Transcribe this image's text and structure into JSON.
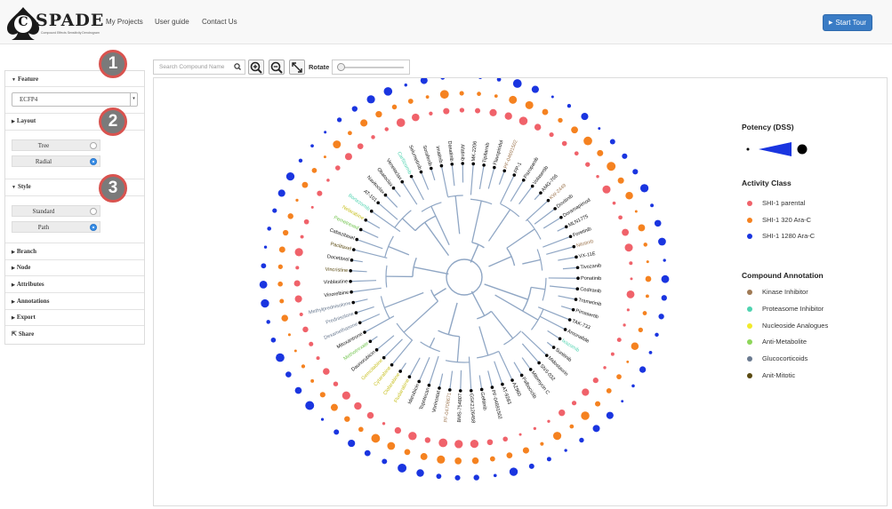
{
  "header": {
    "logo_letter": "C",
    "logo_word": "SPADE",
    "logo_tagline": "Compound Effects Sensitivity Dendrogram",
    "nav": [
      "My Projects",
      "User guide",
      "Contact Us"
    ],
    "start_tour": "Start Tour"
  },
  "sidebar": {
    "feature": {
      "title": "Feature",
      "selected": "ECFP4"
    },
    "layout": {
      "title": "Layout",
      "options": [
        {
          "label": "Tree",
          "checked": false
        },
        {
          "label": "Radial",
          "checked": true
        }
      ]
    },
    "style": {
      "title": "Style",
      "options": [
        {
          "label": "Standard",
          "checked": false
        },
        {
          "label": "Path",
          "checked": true
        }
      ]
    },
    "branch": "Branch",
    "node": "Node",
    "attributes": "Attributes",
    "annotations": "Annotations",
    "export": "Export",
    "share": "Share"
  },
  "badges": [
    "1",
    "2",
    "3"
  ],
  "toolbar": {
    "search_placeholder": "Search Compound Name",
    "rotate_label": "Rotate",
    "rotate_value": 0
  },
  "legend": {
    "potency_title": "Potency (DSS)",
    "activity_title": "Activity Class",
    "activity": [
      {
        "label": "SHI-1 parental",
        "color": "#f0626a"
      },
      {
        "label": "SHI-1 320 Ara-C",
        "color": "#f58220"
      },
      {
        "label": "SHI-1 1280 Ara-C",
        "color": "#1a35e0"
      }
    ],
    "annotation_title": "Compound Annotation",
    "annotations": [
      {
        "label": "Kinase Inhibitor",
        "color": "#a07a55"
      },
      {
        "label": "Proteasome Inhibitor",
        "color": "#4fd3b0"
      },
      {
        "label": "Nucleoside Analogues",
        "color": "#f2ea2a"
      },
      {
        "label": "Anti-Metabolite",
        "color": "#8ed65a"
      },
      {
        "label": "Glucocorticoids",
        "color": "#6a7a90"
      },
      {
        "label": "Anit-Mitotic",
        "color": "#5a4a12"
      }
    ]
  },
  "compounds": [
    {
      "name": "MK-2206",
      "ann": null
    },
    {
      "name": "Tipifarnib",
      "ann": null
    },
    {
      "name": "Flavopiridol",
      "ann": null
    },
    {
      "name": "PF-04691502",
      "ann": "kinase"
    },
    {
      "name": "PP-1",
      "ann": null
    },
    {
      "name": "Pazopanib",
      "ann": null
    },
    {
      "name": "Volasertib",
      "ann": null
    },
    {
      "name": "AMG-706",
      "ann": null
    },
    {
      "name": "KW-2449",
      "ann": "kinase"
    },
    {
      "name": "Dovitinib",
      "ann": null
    },
    {
      "name": "Doramapimod",
      "ann": null
    },
    {
      "name": "MLN1775",
      "ann": null
    },
    {
      "name": "Foretinib",
      "ann": null
    },
    {
      "name": "Nilotinib",
      "ann": "kinase"
    },
    {
      "name": "VX-11E",
      "ann": null
    },
    {
      "name": "Tivozanib",
      "ann": null
    },
    {
      "name": "Ponatinib",
      "ann": null
    },
    {
      "name": "Cediranib",
      "ann": null
    },
    {
      "name": "Trametinib",
      "ann": null
    },
    {
      "name": "Pimasertib",
      "ann": null
    },
    {
      "name": "TAK-733",
      "ann": null
    },
    {
      "name": "Amonafide",
      "ann": null
    },
    {
      "name": "Ixazomib",
      "ann": "proteasome"
    },
    {
      "name": "Sunitinib",
      "ann": null
    },
    {
      "name": "Midostaurin",
      "ann": null
    },
    {
      "name": "SNS-032",
      "ann": null
    },
    {
      "name": "Mitomycin C",
      "ann": null
    },
    {
      "name": "Palbociclib",
      "ann": null
    },
    {
      "name": "AZ960",
      "ann": null
    },
    {
      "name": "AT-9283",
      "ann": null
    },
    {
      "name": "PF-04691502",
      "ann": null
    },
    {
      "name": "Gefitinib",
      "ann": null
    },
    {
      "name": "GSK2126458",
      "ann": null
    },
    {
      "name": "BMS-754807",
      "ann": null
    },
    {
      "name": "PF-04708671",
      "ann": "kinase"
    },
    {
      "name": "Vorinostat",
      "ann": null
    },
    {
      "name": "Topotecan",
      "ann": null
    },
    {
      "name": "Idarubicin",
      "ann": null
    },
    {
      "name": "Fludarabine",
      "ann": "nucleoside"
    },
    {
      "name": "Clofarabine",
      "ann": "nucleoside"
    },
    {
      "name": "Cytarabine",
      "ann": "nucleoside"
    },
    {
      "name": "Gemcitabine",
      "ann": "nucleoside"
    },
    {
      "name": "Daunorubicin",
      "ann": null
    },
    {
      "name": "Methotrexate",
      "ann": "antimetabolite"
    },
    {
      "name": "Mitoxantrone",
      "ann": null
    },
    {
      "name": "Dexamethasone",
      "ann": "glucocorticoid"
    },
    {
      "name": "Prednisolone",
      "ann": "glucocorticoid"
    },
    {
      "name": "Methylprednisolone",
      "ann": "glucocorticoid"
    },
    {
      "name": "Vinorelbine",
      "ann": null
    },
    {
      "name": "Vinblastine",
      "ann": null
    },
    {
      "name": "Vincristine",
      "ann": "antimitotic"
    },
    {
      "name": "Docetaxel",
      "ann": null
    },
    {
      "name": "Paclitaxel",
      "ann": "antimitotic"
    },
    {
      "name": "Cabazitaxel",
      "ann": null
    },
    {
      "name": "Pemetrexed",
      "ann": "antimetabolite"
    },
    {
      "name": "Nelarabine",
      "ann": "nucleoside"
    },
    {
      "name": "Bortezomib",
      "ann": "proteasome"
    },
    {
      "name": "AT-101",
      "ann": null
    },
    {
      "name": "Navitoclax",
      "ann": null
    },
    {
      "name": "Obatoclax",
      "ann": null
    },
    {
      "name": "Venetoclax",
      "ann": null
    },
    {
      "name": "Carfilzomib",
      "ann": "proteasome"
    },
    {
      "name": "Selumetinib",
      "ann": null
    },
    {
      "name": "Sorafenib",
      "ann": null
    },
    {
      "name": "Imatinib",
      "ann": null
    },
    {
      "name": "Dasatinib",
      "ann": null
    },
    {
      "name": "Afatinib",
      "ann": null
    }
  ]
}
